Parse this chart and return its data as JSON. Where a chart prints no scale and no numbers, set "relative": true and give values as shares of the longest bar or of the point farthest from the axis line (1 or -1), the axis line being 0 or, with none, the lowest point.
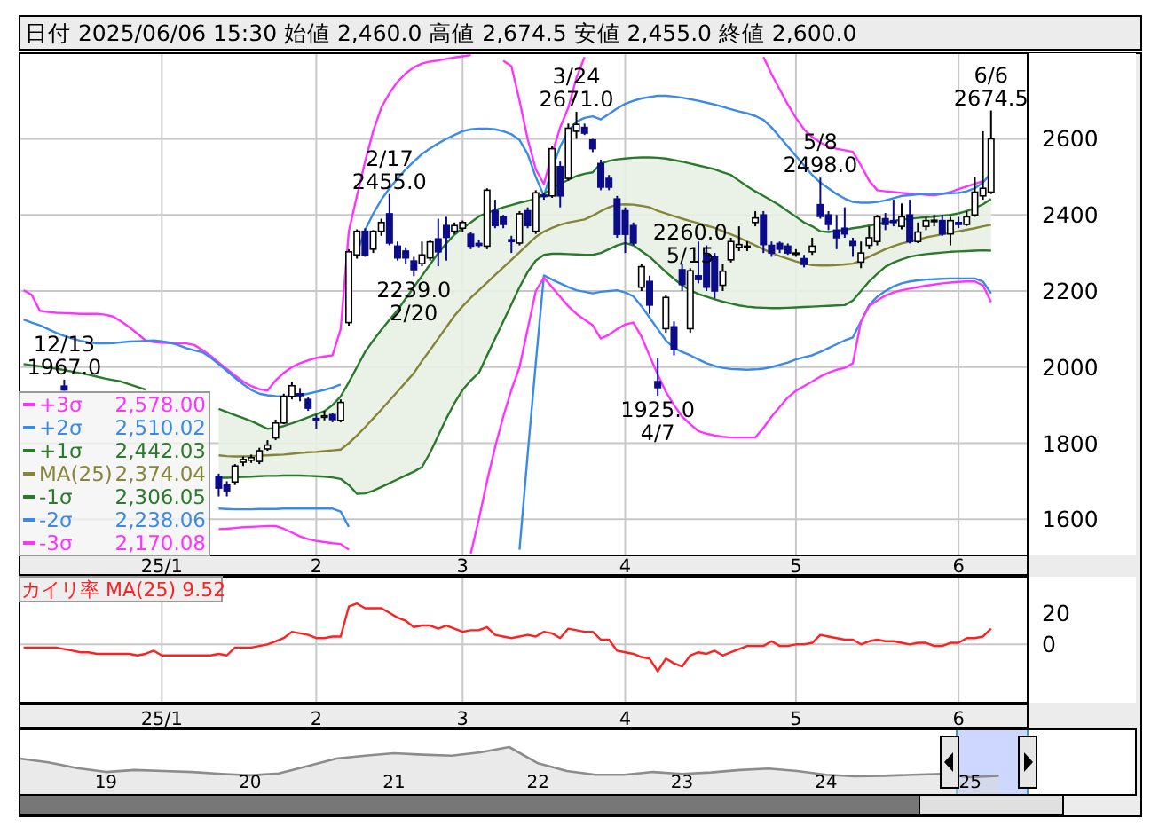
{
  "chart_data": [
    {
      "type": "candlestick",
      "title": "日付 2025/06/06 15:30 始値 2,460.0 高値 2,674.5 安値 2,455.0 終値 2,600.0",
      "categories": [
        null,
        null,
        null,
        null,
        null,
        null,
        null,
        null,
        null,
        null,
        null,
        null,
        null,
        null,
        null,
        null,
        null,
        "25/1",
        null,
        null,
        null,
        null,
        null,
        null,
        null,
        null,
        null,
        null,
        null,
        null,
        null,
        null,
        null,
        null,
        null,
        null,
        "2",
        null,
        null,
        null,
        null,
        null,
        null,
        null,
        null,
        null,
        null,
        null,
        null,
        null,
        null,
        null,
        null,
        null,
        "3",
        null,
        null,
        null,
        null,
        null,
        null,
        null,
        null,
        null,
        null,
        null,
        null,
        null,
        null,
        null,
        null,
        null,
        null,
        null,
        "4",
        null,
        null,
        null,
        null,
        null,
        null,
        null,
        null,
        null,
        null,
        null,
        null,
        null,
        null,
        null,
        null,
        null,
        null,
        null,
        null,
        "5",
        null,
        null,
        null,
        null,
        null,
        null,
        null,
        null,
        null,
        null,
        null,
        null,
        null,
        null,
        null,
        null,
        null,
        null,
        null,
        "6",
        null,
        null,
        null,
        null
      ],
      "ohlc": [
        null,
        null,
        null,
        null,
        null,
        [
          1950,
          1967,
          1938,
          1940
        ],
        null,
        null,
        null,
        null,
        null,
        null,
        null,
        null,
        null,
        null,
        null,
        null,
        null,
        null,
        null,
        null,
        null,
        null,
        [
          1713,
          1720,
          1660,
          1682
        ],
        [
          1690,
          1700,
          1660,
          1675
        ],
        [
          1698,
          1745,
          1690,
          1740
        ],
        [
          1750,
          1765,
          1740,
          1757
        ],
        [
          1755,
          1770,
          1748,
          1762
        ],
        [
          1752,
          1788,
          1745,
          1780
        ],
        [
          1785,
          1808,
          1780,
          1795
        ],
        [
          1814,
          1862,
          1808,
          1853
        ],
        [
          1853,
          1930,
          1850,
          1923
        ],
        [
          1923,
          1962,
          1915,
          1951
        ],
        [
          1930,
          1945,
          1910,
          1925
        ],
        [
          1915,
          1920,
          1885,
          1892
        ],
        [
          1865,
          1875,
          1838,
          1861
        ],
        [
          1868,
          1885,
          1860,
          1872
        ],
        [
          1875,
          1880,
          1855,
          1862
        ],
        [
          1860,
          1915,
          1855,
          1907
        ],
        [
          2117,
          2310,
          2109,
          2303
        ],
        [
          2295,
          2362,
          2285,
          2357
        ],
        [
          2357,
          2365,
          2290,
          2295
        ],
        [
          2310,
          2360,
          2300,
          2357
        ],
        [
          2357,
          2390,
          2345,
          2380
        ],
        [
          2403,
          2455,
          2320,
          2326
        ],
        [
          2318,
          2330,
          2280,
          2287
        ],
        [
          2305,
          2315,
          2270,
          2287
        ],
        [
          2279,
          2290,
          2239,
          2256
        ],
        [
          2272,
          2330,
          2265,
          2295
        ],
        [
          2287,
          2335,
          2280,
          2329
        ],
        [
          2337,
          2390,
          2265,
          2303
        ],
        [
          2372,
          2395,
          2280,
          2341
        ],
        [
          2357,
          2380,
          2350,
          2372
        ],
        [
          2365,
          2385,
          2355,
          2380
        ],
        [
          2349,
          2355,
          2310,
          2318
        ],
        [
          2325,
          2335,
          2315,
          2320
        ],
        [
          2318,
          2470,
          2310,
          2465
        ],
        [
          2411,
          2440,
          2365,
          2372
        ],
        [
          2395,
          2400,
          2365,
          2375
        ],
        [
          2335,
          2345,
          2300,
          2330
        ],
        [
          2326,
          2410,
          2320,
          2403
        ],
        [
          2411,
          2420,
          2365,
          2372
        ],
        [
          2357,
          2465,
          2350,
          2458
        ],
        [
          2452,
          2458,
          2440,
          2450
        ],
        [
          2450,
          2580,
          2445,
          2574
        ],
        [
          2527,
          2540,
          2420,
          2450
        ],
        [
          2496,
          2640,
          2490,
          2628
        ],
        [
          2620,
          2671,
          2600,
          2638
        ],
        [
          2630,
          2640,
          2610,
          2615
        ],
        [
          2597,
          2600,
          2565,
          2574
        ],
        [
          2535,
          2545,
          2465,
          2473
        ],
        [
          2496,
          2505,
          2465,
          2473
        ],
        [
          2442,
          2450,
          2340,
          2349
        ],
        [
          2411,
          2420,
          2300,
          2349
        ],
        [
          2372,
          2380,
          2320,
          2326
        ],
        [
          2210,
          2270,
          2200,
          2264
        ],
        [
          2225,
          2240,
          2140,
          2163
        ],
        [
          1962,
          2024,
          1925,
          1946
        ],
        [
          2101,
          2190,
          2090,
          2183
        ],
        [
          2106,
          2120,
          2031,
          2047
        ],
        [
          2256,
          2270,
          2200,
          2217
        ],
        [
          2101,
          2260,
          2090,
          2253
        ],
        [
          2240,
          2330,
          2220,
          2230
        ],
        [
          2295,
          2320,
          2200,
          2210
        ],
        [
          2290,
          2300,
          2180,
          2200
        ],
        [
          2215,
          2270,
          2200,
          2252
        ],
        [
          2282,
          2340,
          2275,
          2330
        ],
        [
          2315,
          2370,
          2305,
          2322
        ],
        [
          2318,
          2330,
          2305,
          2318
        ],
        [
          2380,
          2410,
          2370,
          2392
        ],
        [
          2400,
          2410,
          2300,
          2322
        ],
        [
          2320,
          2330,
          2290,
          2300
        ],
        [
          2325,
          2330,
          2300,
          2310
        ],
        [
          2318,
          2325,
          2295,
          2300
        ],
        [
          2300,
          2310,
          2290,
          2300
        ],
        [
          2285,
          2295,
          2262,
          2270
        ],
        [
          2303,
          2340,
          2295,
          2318
        ],
        [
          2427,
          2498,
          2390,
          2396
        ],
        [
          2400,
          2410,
          2360,
          2375
        ],
        [
          2360,
          2400,
          2310,
          2340
        ],
        [
          2365,
          2420,
          2340,
          2350
        ],
        [
          2330,
          2340,
          2290,
          2320
        ],
        [
          2276,
          2330,
          2260,
          2300
        ],
        [
          2320,
          2370,
          2310,
          2340
        ],
        [
          2330,
          2400,
          2320,
          2395
        ],
        [
          2390,
          2405,
          2360,
          2375
        ],
        [
          2385,
          2440,
          2370,
          2380
        ],
        [
          2370,
          2430,
          2362,
          2395
        ],
        [
          2400,
          2440,
          2325,
          2330
        ],
        [
          2330,
          2380,
          2326,
          2355
        ],
        [
          2370,
          2395,
          2360,
          2385
        ],
        [
          2385,
          2400,
          2370,
          2386
        ],
        [
          2385,
          2400,
          2345,
          2350
        ],
        [
          2350,
          2395,
          2320,
          2385
        ],
        [
          2380,
          2395,
          2365,
          2375
        ],
        [
          2375,
          2410,
          2371,
          2395
        ],
        [
          2400,
          2500,
          2395,
          2460
        ],
        [
          2450,
          2620,
          2440,
          2470
        ],
        [
          2460,
          2674.5,
          2455,
          2600
        ]
      ],
      "series": [
        {
          "name": "+3σ",
          "type": "line",
          "color": "#ff33ff",
          "values": [
            2202,
            2190,
            2148,
            2145,
            2143,
            2142,
            2141,
            2140,
            2140,
            2140,
            2138,
            2133,
            2120,
            2105,
            2088,
            2070,
            2066,
            2064,
            2063,
            2062,
            2062,
            2058,
            2045,
            2030,
            2012,
            1995,
            1978,
            1962,
            1950,
            1942,
            1938,
            1965,
            1985,
            2000,
            2010,
            2018,
            2024,
            2028,
            2031,
            2100,
            2357,
            2450,
            2540,
            2620,
            2682,
            2720,
            2750,
            2772,
            2788,
            2798,
            2803,
            2806,
            2810,
            2814,
            2817,
            2820,
            null,
            null,
            null,
            2805,
            2791,
            2700,
            2600,
            2520,
            2481,
            2560,
            2630,
            2682,
            2760,
            2815,
            null,
            null,
            null,
            null,
            null,
            null,
            null,
            null,
            null,
            null,
            null,
            null,
            null,
            null,
            null,
            null,
            null,
            null,
            null,
            null,
            null,
            2815,
            2770,
            2730,
            2690,
            2655,
            2625,
            2605,
            2590,
            2580,
            2574,
            2570,
            2566,
            2530,
            2490,
            2465,
            2462,
            2460,
            2458,
            2456,
            2455,
            2453,
            2452,
            2455,
            2460,
            2468,
            2475,
            2482,
            2489,
            null
          ]
        },
        {
          "name": "+2σ",
          "type": "line",
          "color": "#3a8ae8",
          "values": [
            2125,
            2117,
            2110,
            2100,
            2090,
            2082,
            2075,
            2069,
            2065,
            2062,
            2062,
            2063,
            2065,
            2067,
            2068,
            2069,
            2070,
            2068,
            2064,
            2058,
            2050,
            2044,
            2039,
            2025,
            2008,
            1990,
            1972,
            1955,
            1940,
            1930,
            1926,
            1924,
            1923,
            1924,
            1926,
            1930,
            1935,
            1940,
            1946,
            1954,
            null,
            2300,
            2360,
            2403,
            2440,
            2470,
            2495,
            2520,
            2540,
            2560,
            2575,
            2588,
            2600,
            2610,
            2620,
            2625,
            2627,
            2627,
            2625,
            2620,
            2612,
            2597,
            2560,
            2500,
            2450,
            2520,
            2580,
            2620,
            2645,
            2655,
            2659,
            2651,
            2665,
            2680,
            2692,
            2700,
            2706,
            2710,
            2713,
            2713,
            2711,
            2708,
            2704,
            2700,
            2695,
            2690,
            2684,
            2678,
            2672,
            2667,
            2660,
            2650,
            2630,
            2605,
            2580,
            2555,
            2530,
            2505,
            2485,
            2470,
            2455,
            2443,
            2434,
            2432,
            2432,
            2434,
            2438,
            2444,
            2450,
            2452,
            2454,
            2455,
            2455,
            2456,
            2457,
            2458,
            2462,
            2470,
            2485,
            2510
          ]
        },
        {
          "name": "+1σ",
          "type": "line",
          "color": "#2b7a2b",
          "values": [
            2008,
            2005,
            2002,
            1999,
            1996,
            1992,
            1988,
            1984,
            1980,
            1975,
            1970,
            1966,
            1962,
            1955,
            1948,
            1941,
            null,
            null,
            null,
            null,
            null,
            null,
            null,
            null,
            1890,
            1882,
            1874,
            1866,
            1858,
            1848,
            1838,
            1840,
            1845,
            1852,
            1860,
            1868,
            1876,
            1884,
            1900,
            1923,
            1960,
            2000,
            2040,
            2070,
            2098,
            2124,
            2150,
            2180,
            2210,
            2240,
            2270,
            2300,
            2325,
            2348,
            2365,
            2380,
            2396,
            2405,
            2413,
            2420,
            2426,
            2432,
            2437,
            2442,
            2455,
            2470,
            2482,
            2492,
            2502,
            2508,
            2512,
            2535,
            2542,
            2546,
            2548,
            2550,
            2551,
            2551,
            2550,
            2548,
            2544,
            2540,
            2535,
            2530,
            2525,
            2520,
            2512,
            2505,
            2490,
            2475,
            2462,
            2450,
            2438,
            2425,
            2410,
            2395,
            2380,
            2370,
            2357,
            2355,
            2358,
            2361,
            2365,
            2368,
            2372,
            2376,
            2380,
            2384,
            2388,
            2390,
            2392,
            2394,
            2396,
            2398,
            2400,
            2404,
            2410,
            2418,
            2428,
            2442
          ]
        },
        {
          "name": "MA(25)",
          "type": "line",
          "color": "#85853a",
          "values": [
            null,
            null,
            null,
            null,
            null,
            null,
            null,
            null,
            null,
            null,
            null,
            null,
            null,
            null,
            null,
            null,
            null,
            null,
            null,
            null,
            null,
            null,
            null,
            null,
            1768,
            1766,
            1765,
            1765,
            1766,
            1767,
            1768,
            1769,
            1770,
            1772,
            1774,
            1776,
            1777,
            1779,
            1781,
            1783,
            1800,
            1820,
            1842,
            1865,
            1888,
            1912,
            1936,
            1960,
            1984,
            2016,
            2045,
            2075,
            2105,
            2135,
            2160,
            2182,
            2202,
            2222,
            2242,
            2262,
            2282,
            2302,
            2322,
            2342,
            2356,
            2366,
            2374,
            2380,
            2384,
            2388,
            2398,
            2410,
            2420,
            2427,
            2428,
            2427,
            2424,
            2420,
            2411,
            2404,
            2397,
            2390,
            2384,
            2378,
            2372,
            2366,
            2357,
            2349,
            2340,
            2330,
            2320,
            2310,
            2300,
            2292,
            2285,
            2278,
            2272,
            2268,
            2267,
            2267,
            2268,
            2270,
            2272,
            2280,
            2290,
            2300,
            2310,
            2318,
            2325,
            2330,
            2335,
            2341,
            2345,
            2349,
            2353,
            2357,
            2361,
            2365,
            2370,
            2374
          ],
          "lower": [
            null,
            null,
            null,
            null,
            null,
            null,
            null,
            null,
            null,
            null,
            null,
            null,
            null,
            null,
            null,
            null,
            null,
            null,
            null,
            null,
            null,
            null,
            null,
            null,
            1709,
            1709,
            1710,
            1711,
            1712,
            1713,
            1714,
            1714,
            1715,
            1715,
            1715,
            1714,
            1713,
            1712,
            1710,
            1706,
            1690,
            1667,
            1668,
            1675,
            1685,
            1695,
            1705,
            1715,
            1725,
            1737,
            1775,
            1820,
            1865,
            1905,
            1940,
            1965,
            1985,
            2030,
            2075,
            2120,
            2165,
            2210,
            2250,
            2280,
            2295,
            2298,
            2298,
            2297,
            2296,
            2295,
            2295,
            2300,
            2310,
            2320,
            2326,
            2320,
            2305,
            2290,
            2270,
            2250,
            2232,
            2215,
            2202,
            2192,
            2185,
            2178,
            2172,
            2167,
            2162,
            2159,
            2157,
            2156,
            2155,
            2155,
            2156,
            2157,
            2158,
            2159,
            2160,
            2161,
            2162,
            2163,
            2175,
            2200,
            2225,
            2245,
            2264,
            2275,
            2283,
            2290,
            2294,
            2297,
            2299,
            2301,
            2303,
            2304,
            2305,
            2306,
            2307,
            2306
          ],
          "upper": [
            null,
            null,
            null,
            null,
            null,
            null,
            null,
            null,
            null,
            null,
            null,
            null,
            null,
            null,
            null,
            null,
            null,
            null,
            null,
            null,
            null,
            null,
            null,
            null,
            1890,
            1882,
            1874,
            1866,
            1858,
            1848,
            1838,
            1840,
            1845,
            1852,
            1860,
            1868,
            1876,
            1884,
            1900,
            1923,
            1960,
            2000,
            2040,
            2070,
            2098,
            2124,
            2150,
            2180,
            2210,
            2240,
            2270,
            2300,
            2325,
            2348,
            2365,
            2380,
            2396,
            2405,
            2413,
            2420,
            2426,
            2432,
            2437,
            2442,
            2455,
            2470,
            2482,
            2492,
            2502,
            2508,
            2512,
            2535,
            2542,
            2546,
            2548,
            2550,
            2551,
            2551,
            2550,
            2548,
            2544,
            2540,
            2535,
            2530,
            2525,
            2520,
            2512,
            2505,
            2490,
            2475,
            2462,
            2450,
            2438,
            2425,
            2410,
            2395,
            2380,
            2370,
            2357,
            2355,
            2358,
            2361,
            2365,
            2368,
            2372,
            2376,
            2380,
            2384,
            2388,
            2390,
            2392,
            2394,
            2396,
            2398,
            2400,
            2404,
            2410,
            2418,
            2428,
            2442
          ]
        },
        {
          "name": "-1σ",
          "type": "line",
          "color": "#2b7a2b",
          "values": [
            null,
            null,
            null,
            null,
            null,
            null,
            null,
            null,
            null,
            null,
            null,
            null,
            null,
            null,
            null,
            null,
            null,
            null,
            null,
            null,
            null,
            null,
            null,
            null,
            1709,
            1709,
            1710,
            1711,
            1712,
            1713,
            1714,
            1714,
            1715,
            1715,
            1715,
            1714,
            1713,
            1712,
            1710,
            1706,
            1690,
            1667,
            1668,
            1675,
            1685,
            1695,
            1705,
            1715,
            1725,
            1737,
            1775,
            1820,
            1865,
            1905,
            1940,
            1965,
            1985,
            2030,
            2075,
            2120,
            2165,
            2210,
            2250,
            2280,
            2295,
            2298,
            2298,
            2297,
            2296,
            2295,
            2295,
            2300,
            2310,
            2320,
            2326,
            2320,
            2305,
            2290,
            2270,
            2250,
            2232,
            2215,
            2202,
            2192,
            2185,
            2178,
            2172,
            2167,
            2162,
            2159,
            2157,
            2156,
            2155,
            2155,
            2156,
            2157,
            2158,
            2159,
            2160,
            2161,
            2162,
            2163,
            2175,
            2200,
            2225,
            2245,
            2264,
            2275,
            2283,
            2290,
            2294,
            2297,
            2299,
            2301,
            2303,
            2304,
            2305,
            2306,
            2307,
            2306
          ]
        },
        {
          "name": "-2σ",
          "type": "line",
          "color": "#3a8ae8",
          "values": [
            null,
            null,
            null,
            null,
            null,
            null,
            null,
            null,
            null,
            null,
            null,
            null,
            null,
            null,
            null,
            null,
            null,
            null,
            null,
            null,
            null,
            null,
            null,
            null,
            1628,
            1627,
            1626,
            1626,
            1626,
            1627,
            1627,
            1627,
            1628,
            1628,
            1628,
            1628,
            1628,
            1628,
            1628,
            1620,
            1580,
            null,
            null,
            null,
            null,
            null,
            null,
            null,
            null,
            null,
            null,
            null,
            null,
            null,
            null,
            null,
            null,
            null,
            null,
            null,
            null,
            1520,
            1770,
            2010,
            2241,
            2230,
            2220,
            2210,
            2202,
            2198,
            2194,
            2198,
            2200,
            2202,
            2196,
            2186,
            2160,
            2130,
            2100,
            2070,
            2050,
            2040,
            2031,
            2020,
            2010,
            2003,
            1998,
            1995,
            1994,
            1993,
            1994,
            1996,
            2000,
            2006,
            2012,
            2020,
            2026,
            2031,
            2040,
            2050,
            2060,
            2070,
            2078,
            2120,
            2163,
            2185,
            2200,
            2212,
            2220,
            2225,
            2228,
            2230,
            2231,
            2232,
            2233,
            2233,
            2233,
            2233,
            2225,
            2194
          ]
        },
        {
          "name": "-3σ",
          "type": "line",
          "color": "#ff33ff",
          "values": [
            null,
            null,
            null,
            null,
            null,
            null,
            null,
            null,
            null,
            null,
            null,
            null,
            null,
            null,
            null,
            null,
            null,
            null,
            null,
            null,
            null,
            null,
            null,
            null,
            1574,
            1575,
            1577,
            1579,
            1580,
            1581,
            1582,
            1582,
            1575,
            1565,
            1555,
            1548,
            1543,
            1540,
            1537,
            1535,
            1520,
            null,
            null,
            null,
            null,
            null,
            null,
            null,
            null,
            null,
            null,
            null,
            null,
            null,
            null,
            1510,
            1600,
            1700,
            1790,
            1870,
            1940,
            2000,
            2100,
            2200,
            2235,
            2210,
            2185,
            2160,
            2140,
            2125,
            2110,
            2075,
            2085,
            2100,
            2112,
            2117,
            2080,
            2030,
            1980,
            1935,
            1900,
            1870,
            1850,
            1832,
            1825,
            1820,
            1817,
            1815,
            1815,
            1815,
            1815,
            1840,
            1870,
            1895,
            1920,
            1938,
            1950,
            1962,
            1975,
            1985,
            1993,
            1998,
            2010,
            2120,
            2160,
            2175,
            2188,
            2196,
            2202,
            2206,
            2210,
            2214,
            2217,
            2220,
            2222,
            2224,
            2225,
            2225,
            2215,
            2171
          ]
        }
      ],
      "ylim": [
        1505,
        2825
      ],
      "yticks": [
        1600,
        1800,
        2000,
        2200,
        2400,
        2600
      ],
      "grid": true,
      "legend": "bottom left",
      "annotations": [
        "2,578.00",
        "2,510.02",
        "2,442.03",
        "2,374.04",
        "2,306.05",
        "2,238.06",
        "2,170.08",
        {
          "text": "12/13\n1967.0",
          "y": 1967
        },
        {
          "text": "2/17\n2455.0",
          "y": 2455
        },
        {
          "text": "2239.0\n2/20",
          "y": 2239
        },
        {
          "text": "3/24\n2671.0",
          "y": 2671
        },
        {
          "text": "1925.0\n4/7",
          "y": 1925
        },
        {
          "text": "5/8\n2498.0",
          "y": 2498
        },
        {
          "text": "2260.0\n5/15",
          "y": 2260
        },
        {
          "text": "6/6\n2674.5",
          "y": 2674.5
        }
      ]
    },
    {
      "type": "line",
      "title": "カイリ率 MA(25)  9.52",
      "categories": [
        null,
        null,
        null,
        null,
        null,
        null,
        null,
        null,
        null,
        null,
        null,
        null,
        null,
        null,
        null,
        null,
        null,
        "25/1",
        null,
        null,
        null,
        null,
        null,
        null,
        null,
        null,
        null,
        null,
        null,
        null,
        null,
        null,
        null,
        null,
        null,
        null,
        "2",
        null,
        null,
        null,
        null,
        null,
        null,
        null,
        null,
        null,
        null,
        null,
        null,
        null,
        null,
        null,
        null,
        null,
        "3",
        null,
        null,
        null,
        null,
        null,
        null,
        null,
        null,
        null,
        null,
        null,
        null,
        null,
        null,
        null,
        null,
        null,
        null,
        null,
        "4",
        null,
        null,
        null,
        null,
        null,
        null,
        null,
        null,
        null,
        null,
        null,
        null,
        null,
        null,
        null,
        null,
        null,
        null,
        null,
        null,
        "5",
        null,
        null,
        null,
        null,
        null,
        null,
        null,
        null,
        null,
        null,
        null,
        null,
        null,
        null,
        null,
        null,
        null,
        null,
        null,
        "6",
        null,
        null,
        null,
        null
      ],
      "series": [
        {
          "color": "#ff2020",
          "values": [
            -2,
            -2,
            -2,
            -2,
            -2,
            -3,
            -4,
            -5,
            -5,
            -6,
            -6,
            -6,
            -6,
            -6,
            -7,
            -6,
            -4,
            -7,
            -7,
            -7,
            -7,
            -7,
            -7,
            -7,
            -6,
            -7,
            -2,
            -2,
            -2,
            -1,
            0,
            2,
            4,
            8,
            7,
            6,
            4,
            4,
            5,
            5,
            24,
            26,
            23,
            23,
            23,
            20,
            17,
            15,
            11,
            12,
            12,
            10,
            12,
            10,
            8,
            9,
            9,
            11,
            6,
            5,
            4,
            5,
            6,
            5,
            8,
            7,
            4,
            10,
            9,
            8,
            8,
            3,
            3,
            -4,
            -5,
            -6,
            -8,
            -9,
            -17,
            -9,
            -12,
            -14,
            -7,
            -5,
            -6,
            -4,
            -7,
            -5,
            -3,
            -1,
            -1,
            -1,
            2,
            -1,
            -1,
            0,
            0,
            1,
            6,
            5,
            4,
            3,
            3,
            0,
            2,
            3,
            2,
            2,
            1,
            0,
            1,
            1,
            -1,
            -1,
            1,
            1,
            4,
            4,
            5,
            10
          ]
        }
      ],
      "ylim": [
        -37,
        43
      ],
      "yticks": [
        0,
        20
      ],
      "grid": "x",
      "ref_lines": [
        {
          "axis": "y",
          "value": 0,
          "color": "#c8c8c8"
        }
      ]
    },
    {
      "type": "area",
      "relative": true,
      "color": "#8c8c8c",
      "categories": [
        null,
        null,
        null,
        "19",
        null,
        null,
        null,
        null,
        "20",
        null,
        null,
        null,
        null,
        "21",
        null,
        null,
        null,
        null,
        "22",
        null,
        null,
        null,
        null,
        "23",
        null,
        null,
        null,
        null,
        "24",
        null,
        null,
        null,
        null,
        "25",
        null
      ],
      "values": [
        0.76,
        0.68,
        0.56,
        0.48,
        0.52,
        0.5,
        0.48,
        0.44,
        0.41,
        0.45,
        0.6,
        0.76,
        0.82,
        0.87,
        0.84,
        0.82,
        0.89,
        1,
        0.66,
        0.5,
        0.42,
        0.42,
        0.48,
        0.44,
        0.47,
        0.52,
        0.55,
        0.5,
        0.42,
        0.39,
        0.4,
        0.42,
        0.44,
        0.37,
        0.4
      ]
    }
  ]
}
